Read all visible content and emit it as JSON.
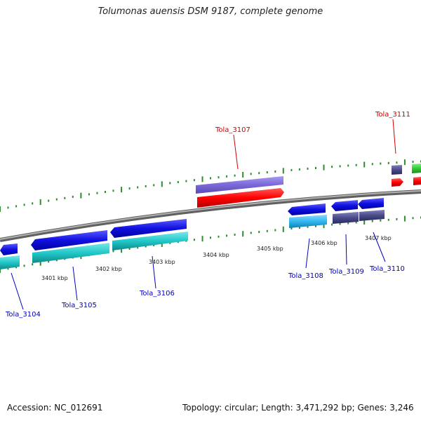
{
  "title": "Tolumonas auensis DSM 9187, complete genome",
  "footer": {
    "accession": "Accession: NC_012691",
    "topology": "Topology: circular; Length: 3,471,292 bp; Genes: 3,246"
  },
  "scale_labels": [
    "3401 kbp",
    "3402 kbp",
    "3403 kbp",
    "3404 kbp",
    "3405 kbp",
    "3406 kbp",
    "3407 kbp"
  ],
  "gene_labels": [
    {
      "name": "Tola_3104",
      "color": "#0000bb"
    },
    {
      "name": "Tola_3105",
      "color": "#0000bb"
    },
    {
      "name": "Tola_3106",
      "color": "#0000bb"
    },
    {
      "name": "Tola_3107",
      "color": "#cc0000"
    },
    {
      "name": "Tola_3108",
      "color": "#0000bb"
    },
    {
      "name": "Tola_3109",
      "color": "#0000bb"
    },
    {
      "name": "Tola_3110",
      "color": "#0000bb"
    },
    {
      "name": "Tola_3111",
      "color": "#cc0000"
    }
  ],
  "colors": {
    "forward_gene": "#ff0000",
    "forward_cds": "#7b68d8",
    "reverse_gene": "#1010e0",
    "reverse_cds_teal": "#20c8c8",
    "reverse_cds_sky": "#30b8f0",
    "reverse_cds_navy": "#4a4a8a",
    "other_gene": "#33cc33",
    "backbone": "#808080",
    "ticks": "#2e8b2e"
  }
}
